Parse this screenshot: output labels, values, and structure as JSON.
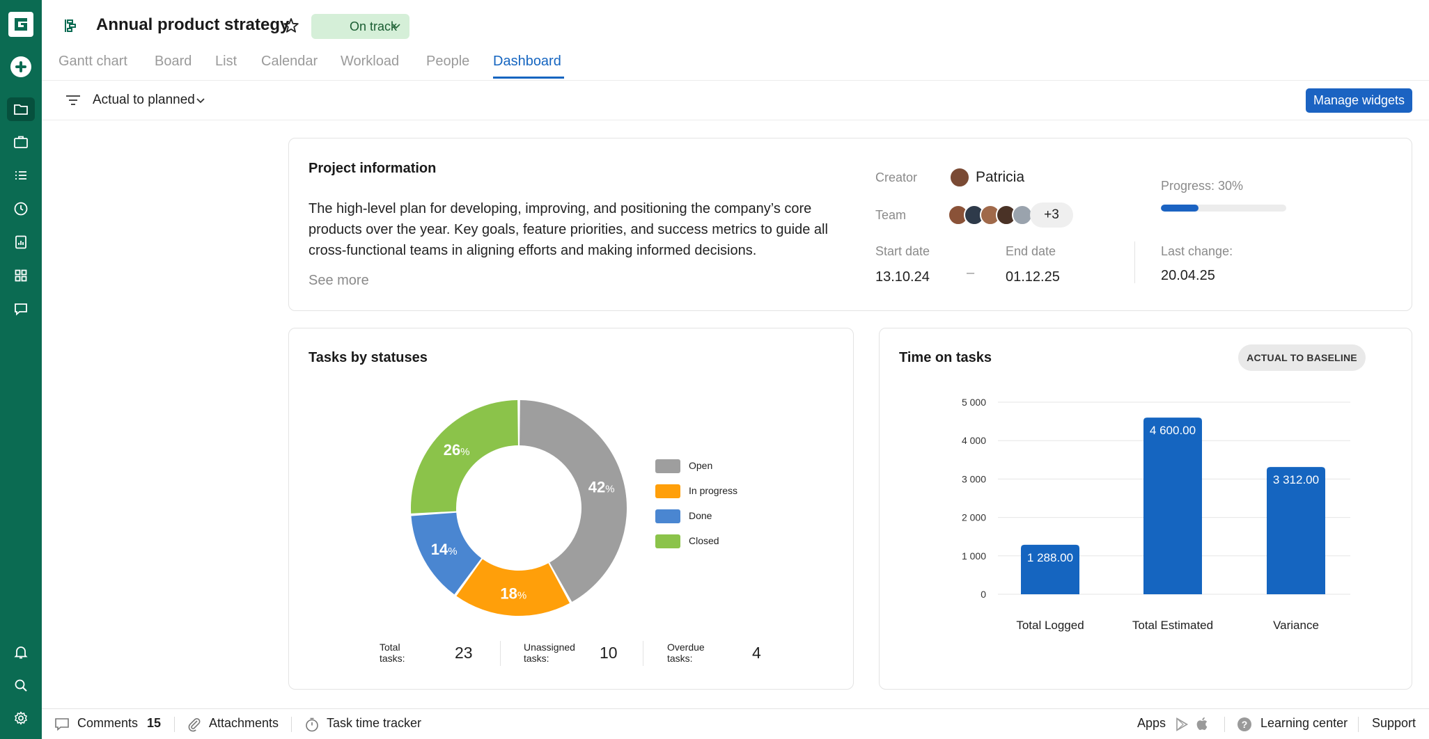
{
  "app": {
    "logo_letter": "G"
  },
  "header": {
    "title": "Annual product strategy",
    "status": "On track",
    "tabs": [
      {
        "label": "Gantt chart"
      },
      {
        "label": "Board"
      },
      {
        "label": "List"
      },
      {
        "label": "Calendar"
      },
      {
        "label": "Workload"
      },
      {
        "label": "People"
      },
      {
        "label": "Dashboard",
        "active": true
      }
    ]
  },
  "filter": {
    "label": "Actual to planned",
    "manage_label": "Manage widgets"
  },
  "project_info": {
    "title": "Project information",
    "description": "The high-level plan for developing, improving, and positioning the company’s core products over the year. Key goals, feature priorities, and success metrics to guide all cross-functional teams in aligning efforts and making informed decisions.",
    "see_more": "See more",
    "creator_label": "Creator",
    "creator_name": "Patricia",
    "team_label": "Team",
    "team_more": "+3",
    "start_label": "Start date",
    "start_value": "13.10.24",
    "date_dash": "–",
    "end_label": "End date",
    "end_value": "01.12.25",
    "progress_label": "Progress: 30%",
    "progress_fraction": 0.3,
    "last_change_label": "Last change:",
    "last_change_value": "20.04.25"
  },
  "tasks_by_status": {
    "title": "Tasks by statuses",
    "pct_symbol": "%",
    "legend": [
      {
        "label": "Open",
        "color": "#9e9e9e"
      },
      {
        "label": "In progress",
        "color": "#ff9f0a"
      },
      {
        "label": "Done",
        "color": "#4a86d1"
      },
      {
        "label": "Closed",
        "color": "#8bc34a"
      }
    ],
    "stats": [
      {
        "label": "Total tasks:",
        "value": "23"
      },
      {
        "label": "Unassigned tasks:",
        "value": "10"
      },
      {
        "label": "Overdue tasks:",
        "value": "4"
      }
    ]
  },
  "time_on_tasks": {
    "title": "Time on tasks",
    "badge": "ACTUAL TO BASELINE"
  },
  "chart_data": [
    {
      "type": "pie",
      "title": "Tasks by statuses",
      "categories": [
        "Open",
        "In progress",
        "Done",
        "Closed"
      ],
      "values": [
        42,
        18,
        14,
        26
      ],
      "value_labels": [
        "42",
        "18",
        "14",
        "26"
      ],
      "colors": [
        "#9e9e9e",
        "#ff9f0a",
        "#4a86d1",
        "#8bc34a"
      ],
      "legend": "right"
    },
    {
      "type": "bar",
      "title": "Time on tasks",
      "categories": [
        "Total Logged",
        "Total Estimated",
        "Variance"
      ],
      "values": [
        1288,
        4600,
        3312
      ],
      "value_labels": [
        "1 288.00",
        "4 600.00",
        "3 312.00"
      ],
      "yticks": [
        "0",
        "1 000",
        "2 000",
        "3 000",
        "4 000",
        "5 000"
      ],
      "ylim": [
        0,
        5000
      ],
      "grid": true,
      "color": "#1565c0"
    }
  ],
  "footer": {
    "comments_label": "Comments",
    "comments_count": "15",
    "attachments_label": "Attachments",
    "tracker_label": "Task time tracker",
    "apps_label": "Apps",
    "learning_label": "Learning center",
    "support_label": "Support"
  }
}
